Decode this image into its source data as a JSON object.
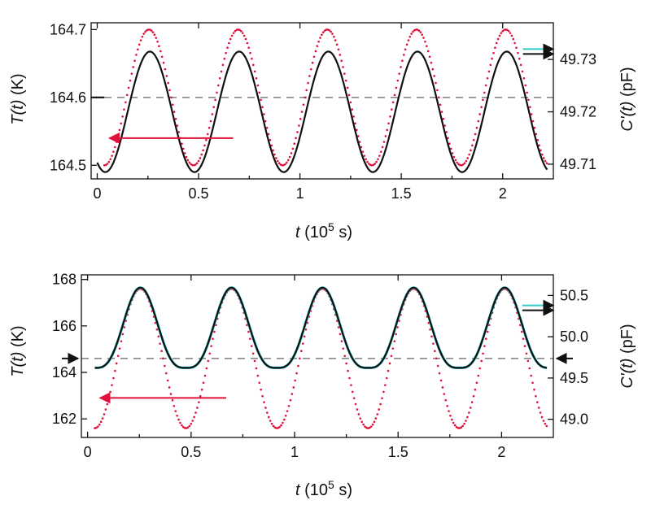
{
  "colors": {
    "temperature": "#e0103a",
    "capacitance": "#111111",
    "capacitance_alt": "#33cccc",
    "baseline": "#888888",
    "arrow_left": "#e0103a"
  },
  "chart_data": [
    {
      "type": "line",
      "panel": "top",
      "xlabel": {
        "var": "t",
        "rest": " (10",
        "sup": "5",
        "tail": " s)"
      },
      "ylabel_left": {
        "var": "T(t)",
        "unit": " (K)"
      },
      "ylabel_right": {
        "var": "C'(t)",
        "unit": " (pF)"
      },
      "xlim": [
        -0.03,
        2.25
      ],
      "ylim_left": [
        164.48,
        164.71
      ],
      "ylim_right": [
        49.7072,
        49.737
      ],
      "x_ticks": [
        0,
        0.5,
        1,
        1.5,
        2
      ],
      "x_tick_labels": [
        "0",
        "0.5",
        "1",
        "1.5",
        "2"
      ],
      "y_left_ticks": [
        164.5,
        164.6,
        164.7
      ],
      "y_left_tick_labels": [
        "164.5",
        "164.6",
        "164.7"
      ],
      "y_right_ticks": [
        49.71,
        49.72,
        49.73
      ],
      "y_right_tick_labels": [
        "49.71",
        "49.72",
        "49.73"
      ],
      "baseline_left": 164.6,
      "series": [
        {
          "axis": "left",
          "style": "dotted",
          "color_key": "temperature",
          "start": 0.035,
          "period": 0.44,
          "base": 164.6,
          "amplitude": 0.1,
          "phase_shift": 0,
          "x_end": 2.22
        },
        {
          "axis": "right",
          "style": "solid",
          "color_key": "capacitance",
          "start": 0,
          "period": 0.44,
          "base": 49.72,
          "amplitude": 0.0115,
          "phase_shift": 0.04,
          "x_end": 2.22
        }
      ],
      "arrows": [
        {
          "direction": "left",
          "color_key": "arrow_left",
          "x": [
            0.67,
            0.06
          ],
          "y": 164.54,
          "axis": "left"
        },
        {
          "direction": "right",
          "color_key": "capacitance",
          "x": [
            2.1,
            2.25
          ],
          "y": 49.7315,
          "axis": "right",
          "double": true
        }
      ]
    },
    {
      "type": "line",
      "panel": "bottom",
      "xlabel": {
        "var": "t",
        "rest": " (10",
        "sup": "5",
        "tail": " s)"
      },
      "ylabel_left": {
        "var": "T(t)",
        "unit": " (K)"
      },
      "ylabel_right": {
        "var": "C'(t)",
        "unit": " (pF)"
      },
      "xlim": [
        -0.03,
        2.25
      ],
      "ylim_left": [
        161.2,
        168.2
      ],
      "ylim_right": [
        48.78,
        50.75
      ],
      "x_ticks": [
        0,
        0.5,
        1,
        1.5,
        2
      ],
      "x_tick_labels": [
        "0",
        "0.5",
        "1",
        "1.5",
        "2"
      ],
      "y_left_ticks": [
        162,
        164,
        166,
        168
      ],
      "y_left_tick_labels": [
        "162",
        "164",
        "166",
        "168"
      ],
      "y_right_ticks": [
        49.0,
        49.5,
        50.0,
        50.5
      ],
      "y_right_tick_labels": [
        "49.0",
        "49.5",
        "50.0",
        "50.5"
      ],
      "baseline_left": 164.6,
      "series": [
        {
          "axis": "left",
          "style": "dotted",
          "color_key": "temperature",
          "start": 0.035,
          "period": 0.44,
          "base": 164.6,
          "amplitude": 3.0,
          "phase_shift": 0,
          "x_end": 2.22
        },
        {
          "axis": "right",
          "style": "solid_cyan",
          "color_key": "capacitance_alt",
          "start": 0.035,
          "period": 0.44,
          "base": 49.72,
          "amplitude": 0.81,
          "phase_shift": 0,
          "x_end": 2.22,
          "shape": "peaked"
        },
        {
          "axis": "right",
          "style": "solid",
          "color_key": "capacitance",
          "start": 0.035,
          "period": 0.44,
          "base": 49.72,
          "amplitude": 0.81,
          "phase_shift": 0,
          "x_end": 2.22,
          "shape": "peaked"
        }
      ],
      "arrows": [
        {
          "direction": "left",
          "color_key": "arrow_left",
          "x": [
            0.67,
            0.06
          ],
          "y": 162.9,
          "axis": "left"
        },
        {
          "direction": "right",
          "color_key": "capacitance",
          "x": [
            2.1,
            2.25
          ],
          "y": 50.35,
          "axis": "right",
          "double": true
        },
        {
          "direction": "right",
          "color_key": "capacitance",
          "x": [
            -0.22,
            -0.05
          ],
          "y": 164.6,
          "axis": "left",
          "edge": "left"
        },
        {
          "direction": "left",
          "color_key": "capacitance",
          "x": [
            2.43,
            2.26
          ],
          "y": 164.6,
          "axis": "left",
          "edge": "right"
        }
      ]
    }
  ]
}
